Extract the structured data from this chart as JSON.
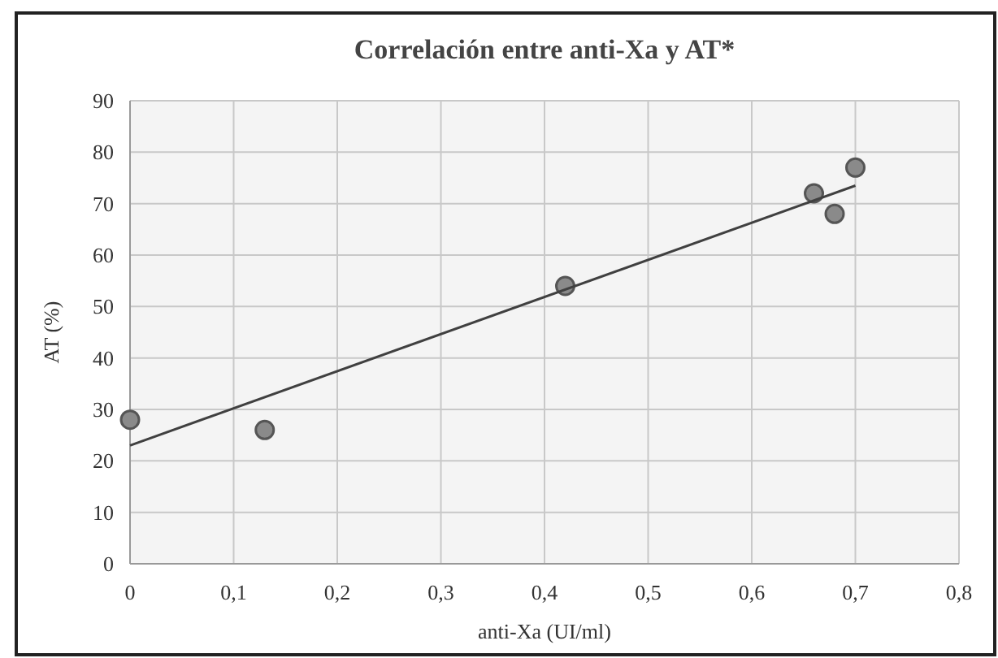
{
  "chart_data": {
    "type": "scatter",
    "title": "Correlación entre anti-Xa y AT*",
    "xlabel": "anti-Xa (UI/ml)",
    "ylabel": "AT (%)",
    "x": [
      0,
      0.13,
      0.42,
      0.66,
      0.68,
      0.7
    ],
    "series": [
      {
        "color": "#8a8a8a",
        "values": [
          28,
          26,
          54,
          72,
          68,
          77
        ]
      },
      {
        "type": "line",
        "color": "#404040",
        "x": [
          0,
          0.7
        ],
        "values": [
          23,
          73.5
        ],
        "marker": "none"
      }
    ],
    "xlim": [
      0,
      0.8
    ],
    "xticks": [
      {
        "value": 0,
        "label": "0"
      },
      {
        "value": 0.1,
        "label": "0,1"
      },
      {
        "value": 0.2,
        "label": "0,2"
      },
      {
        "value": 0.3,
        "label": "0,3"
      },
      {
        "value": 0.4,
        "label": "0,4"
      },
      {
        "value": 0.5,
        "label": "0,5"
      },
      {
        "value": 0.6,
        "label": "0,6"
      },
      {
        "value": 0.7,
        "label": "0,7"
      },
      {
        "value": 0.8,
        "label": "0,8"
      }
    ],
    "ylim": [
      0,
      90
    ],
    "yticks": [
      0,
      10,
      20,
      30,
      40,
      50,
      60,
      70,
      80,
      90
    ],
    "grid": true,
    "marker": "circle"
  }
}
